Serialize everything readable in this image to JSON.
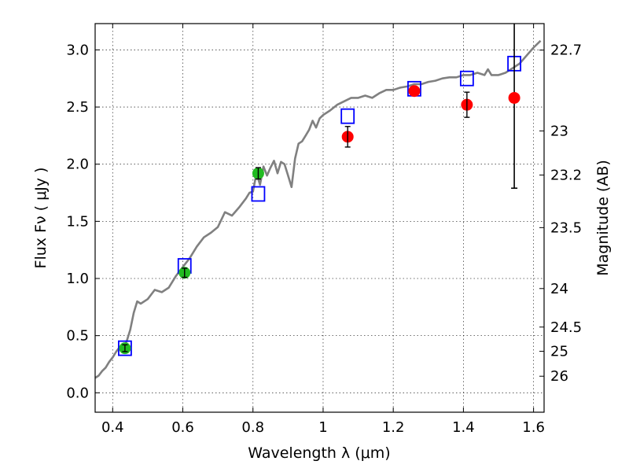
{
  "chart_data": {
    "type": "scatter",
    "xlabel": "Wavelength  λ (μm)",
    "ylabel": "Flux  Fν ( μJy )",
    "ylabel_right": "Magnitude (AB)",
    "xlim": [
      0.35,
      1.63
    ],
    "ylim": [
      -0.17,
      3.23
    ],
    "grid": true,
    "x_ticks": [
      {
        "value": 0.4,
        "label": "0.4"
      },
      {
        "value": 0.6,
        "label": "0.6"
      },
      {
        "value": 0.8,
        "label": "0.8"
      },
      {
        "value": 1.0,
        "label": "1"
      },
      {
        "value": 1.2,
        "label": "1.2"
      },
      {
        "value": 1.4,
        "label": "1.4"
      },
      {
        "value": 1.6,
        "label": "1.6"
      }
    ],
    "y_ticks": [
      {
        "value": 0.0,
        "label": "0.0"
      },
      {
        "value": 0.5,
        "label": "0.5"
      },
      {
        "value": 1.0,
        "label": "1.0"
      },
      {
        "value": 1.5,
        "label": "1.5"
      },
      {
        "value": 2.0,
        "label": "2.0"
      },
      {
        "value": 2.5,
        "label": "2.5"
      },
      {
        "value": 3.0,
        "label": "3.0"
      }
    ],
    "right_ticks": [
      {
        "flux": 2.998,
        "label": "22.7"
      },
      {
        "flux": 2.291,
        "label": "23"
      },
      {
        "flux": 1.905,
        "label": "23.2"
      },
      {
        "flux": 1.445,
        "label": "23.5"
      },
      {
        "flux": 0.912,
        "label": "24"
      },
      {
        "flux": 0.575,
        "label": "24.5"
      },
      {
        "flux": 0.363,
        "label": "25"
      },
      {
        "flux": 0.145,
        "label": "26"
      }
    ],
    "series": [
      {
        "marker": "line",
        "color": "#808080",
        "x": [
          0.35,
          0.36,
          0.37,
          0.38,
          0.39,
          0.4,
          0.41,
          0.42,
          0.43,
          0.44,
          0.45,
          0.46,
          0.47,
          0.48,
          0.5,
          0.52,
          0.54,
          0.56,
          0.58,
          0.6,
          0.62,
          0.64,
          0.66,
          0.68,
          0.7,
          0.72,
          0.74,
          0.76,
          0.78,
          0.79,
          0.8,
          0.81,
          0.82,
          0.83,
          0.84,
          0.85,
          0.86,
          0.87,
          0.88,
          0.89,
          0.9,
          0.91,
          0.92,
          0.93,
          0.94,
          0.95,
          0.96,
          0.97,
          0.98,
          0.99,
          1.0,
          1.02,
          1.04,
          1.06,
          1.08,
          1.1,
          1.12,
          1.14,
          1.16,
          1.18,
          1.2,
          1.22,
          1.24,
          1.26,
          1.28,
          1.3,
          1.32,
          1.34,
          1.36,
          1.38,
          1.4,
          1.42,
          1.44,
          1.46,
          1.47,
          1.48,
          1.5,
          1.52,
          1.54,
          1.56,
          1.58,
          1.6,
          1.62
        ],
        "y": [
          0.13,
          0.15,
          0.19,
          0.22,
          0.27,
          0.31,
          0.36,
          0.4,
          0.38,
          0.45,
          0.55,
          0.7,
          0.8,
          0.78,
          0.82,
          0.9,
          0.88,
          0.92,
          1.02,
          1.1,
          1.18,
          1.28,
          1.36,
          1.4,
          1.45,
          1.58,
          1.55,
          1.62,
          1.7,
          1.75,
          1.76,
          1.92,
          1.82,
          1.98,
          1.9,
          1.97,
          2.03,
          1.92,
          2.02,
          2.0,
          1.9,
          1.8,
          2.05,
          2.18,
          2.2,
          2.25,
          2.3,
          2.38,
          2.32,
          2.4,
          2.43,
          2.47,
          2.52,
          2.55,
          2.58,
          2.58,
          2.6,
          2.58,
          2.62,
          2.65,
          2.65,
          2.67,
          2.68,
          2.7,
          2.7,
          2.72,
          2.73,
          2.75,
          2.76,
          2.76,
          2.78,
          2.78,
          2.8,
          2.78,
          2.83,
          2.78,
          2.78,
          2.8,
          2.84,
          2.88,
          2.95,
          3.02,
          3.08
        ]
      },
      {
        "marker": "open-square",
        "color": "#0000ff",
        "x": [
          0.435,
          0.605,
          0.815,
          1.07,
          1.26,
          1.41,
          1.545
        ],
        "y": [
          0.39,
          1.11,
          1.74,
          2.42,
          2.66,
          2.75,
          2.88
        ]
      },
      {
        "marker": "filled-circle",
        "color": "#22bb22",
        "x": [
          0.435,
          0.605,
          0.815
        ],
        "y": [
          0.39,
          1.05,
          1.92
        ],
        "err": [
          0.03,
          0.04,
          0.05
        ]
      },
      {
        "marker": "filled-circle",
        "color": "#ff0000",
        "x": [
          1.07,
          1.26,
          1.41,
          1.545
        ],
        "y": [
          2.24,
          2.64,
          2.52,
          2.58
        ],
        "err": [
          0.09,
          0.0,
          0.11,
          0.0
        ]
      },
      {
        "marker": "errorbar",
        "color": "#000000",
        "x": [
          1.545
        ],
        "y_low": [
          1.79
        ],
        "y_high": [
          3.23
        ]
      }
    ]
  }
}
